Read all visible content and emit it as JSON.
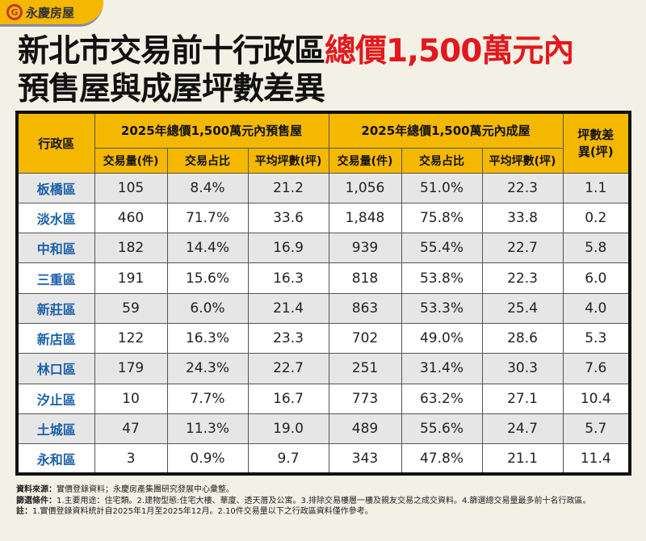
{
  "logo": {
    "text": "永慶房屋"
  },
  "title": {
    "line1_black": "新北市交易前十行政區",
    "line1_red": "總價1,500萬元內",
    "line2": "預售屋與成屋坪數差異"
  },
  "table": {
    "district_header": "行政區",
    "presale_header": "2025年總價1,500萬元內預售屋",
    "existing_header": "2025年總價1,500萬元內成屋",
    "diff_header": "坪數差異(坪)",
    "sub_headers": [
      "交易量(件)",
      "交易占比",
      "平均坪數(坪)",
      "交易量(件)",
      "交易占比",
      "平均坪數(坪)"
    ],
    "rows": [
      [
        "板橋區",
        "105",
        "8.4%",
        "21.2",
        "1,056",
        "51.0%",
        "22.3",
        "1.1"
      ],
      [
        "淡水區",
        "460",
        "71.7%",
        "33.6",
        "1,848",
        "75.8%",
        "33.8",
        "0.2"
      ],
      [
        "中和區",
        "182",
        "14.4%",
        "16.9",
        "939",
        "55.4%",
        "22.7",
        "5.8"
      ],
      [
        "三重區",
        "191",
        "15.6%",
        "16.3",
        "818",
        "53.8%",
        "22.3",
        "6.0"
      ],
      [
        "新莊區",
        "59",
        "6.0%",
        "21.4",
        "863",
        "53.3%",
        "25.4",
        "4.0"
      ],
      [
        "新店區",
        "122",
        "16.3%",
        "23.3",
        "702",
        "49.0%",
        "28.6",
        "5.3"
      ],
      [
        "林口區",
        "179",
        "24.3%",
        "22.7",
        "251",
        "31.4%",
        "30.3",
        "7.6"
      ],
      [
        "汐止區",
        "10",
        "7.7%",
        "16.7",
        "773",
        "63.2%",
        "27.1",
        "10.4"
      ],
      [
        "土城區",
        "47",
        "11.3%",
        "19.0",
        "489",
        "55.6%",
        "24.7",
        "5.7"
      ],
      [
        "永和區",
        "3",
        "0.9%",
        "9.7",
        "343",
        "47.8%",
        "21.1",
        "11.4"
      ]
    ]
  },
  "notes": {
    "source_label": "資料來源：",
    "source": "實價登錄資料；永慶房產集團研究發展中心彙整。",
    "filter_label": "篩選條件：",
    "filter": "1.主要用途：住宅類。2.建物型態:住宅大樓、華廈、透天厝及公寓。3.排除交易樓層一樓及親友交易之成交資料。4.篩選總交易量最多前十名行政區。",
    "note_label": "註：",
    "note": "1.實價登錄資料統計自2025年1月至2025年12月。2.10件交易量以下之行政區資料僅作參考。"
  },
  "colors": {
    "accent": "#f5b800",
    "title_red": "#e3181d",
    "district_blue": "#1a5fa8"
  }
}
